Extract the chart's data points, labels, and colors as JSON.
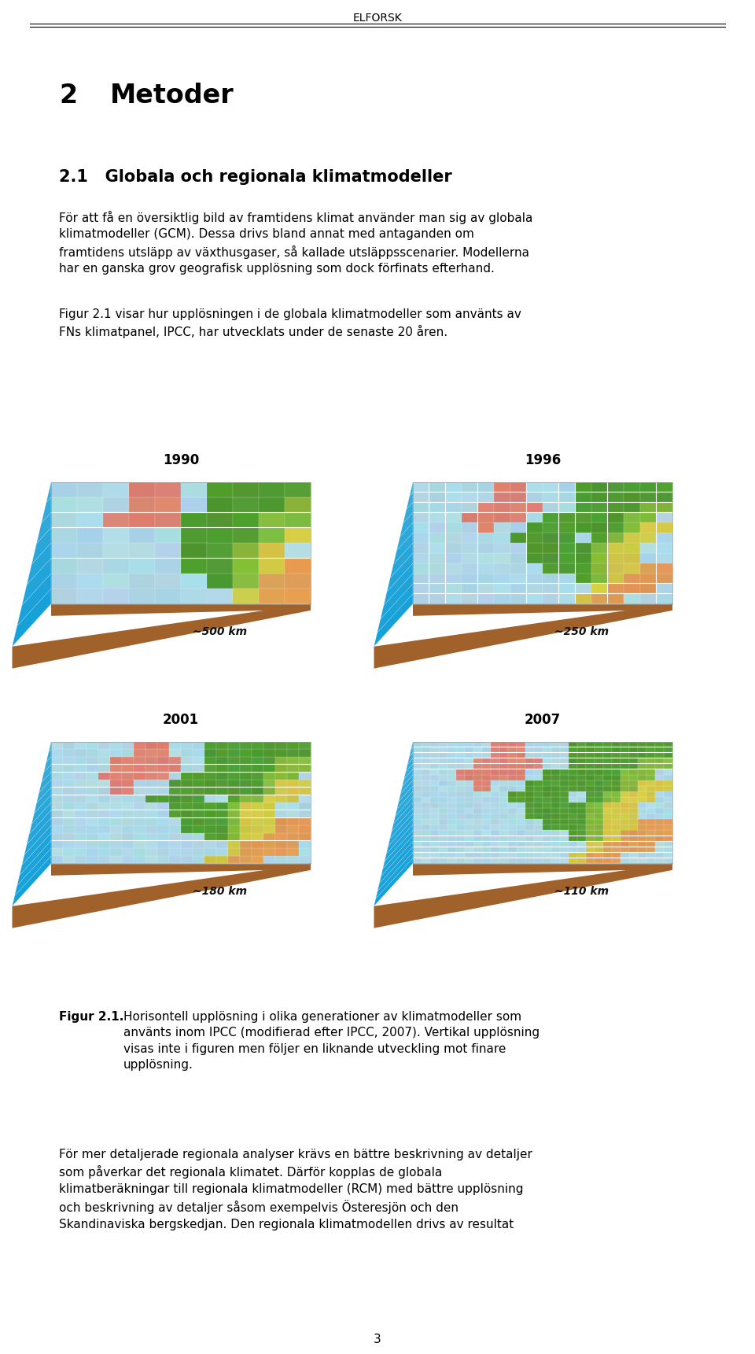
{
  "page_width": 9.6,
  "page_height": 17.21,
  "dpi": 100,
  "background_color": "#ffffff",
  "header_text": "ELFORSK",
  "header_fontsize": 10,
  "chapter_number": "2",
  "chapter_title": "Metoder",
  "chapter_fontsize": 24,
  "section_title": "2.1   Globala och regionala klimatmodeller",
  "section_fontsize": 15,
  "body_text_1": "För att få en översiktlig bild av framtidens klimat använder man sig av globala\nklimatmodeller (GCM). Dessa drivs bland annat med antaganden om\nframtidens utsläpp av växthusgaser, så kallade utsläppsscenarier. Modellerna\nhar en ganska grov geografisk upplösning som dock förfinats efterhand.",
  "body_text_2": "Figur 2.1 visar hur upplösningen i de globala klimatmodeller som använts av\nFNs klimatpanel, IPCC, har utvecklats under de senaste 20 åren.",
  "body_fontsize": 11,
  "year_labels": [
    "1990",
    "1996",
    "2001",
    "2007"
  ],
  "km_labels": [
    "~500 km",
    "~250 km",
    "~180 km",
    "~110 km"
  ],
  "year_fontsize": 12,
  "km_fontsize": 10,
  "figure_caption_bold": "Figur 2.1.",
  "figure_caption_normal": "Horisontell upplösning i olika generationer av klimatmodeller som\nanvänts inom IPCC (modifierad efter IPCC, 2007). Vertikal upplösning\nvisas inte i figuren men följer en liknande utveckling mot finare\nupplösning.",
  "caption_fontsize": 11,
  "body_text_3": "För mer detaljerade regionala analyser krävs en bättre beskrivning av detaljer\nsom påverkar det regionala klimatet. Därför kopplas de globala\nklimatberäkningar till regionala klimatmodeller (RCM) med bättre upplösning\noch beskrivning av detaljer såsom exempelvis Österesjön och den\nSkandinaviska bergskedjan. Den regionala klimatmodellen drivs av resultat",
  "page_number": "3",
  "line_color": "#000000",
  "text_color": "#000000",
  "ocean_color": "#add8e6",
  "land_green_dark": "#5a9e32",
  "land_green_light": "#8bc44a",
  "land_yellow": "#d4c84a",
  "land_orange": "#e8a055",
  "land_salmon": "#e08070",
  "land_white": "#f0f0f0",
  "ground_color": "#a0622a",
  "water_side_color": "#5aaad0"
}
